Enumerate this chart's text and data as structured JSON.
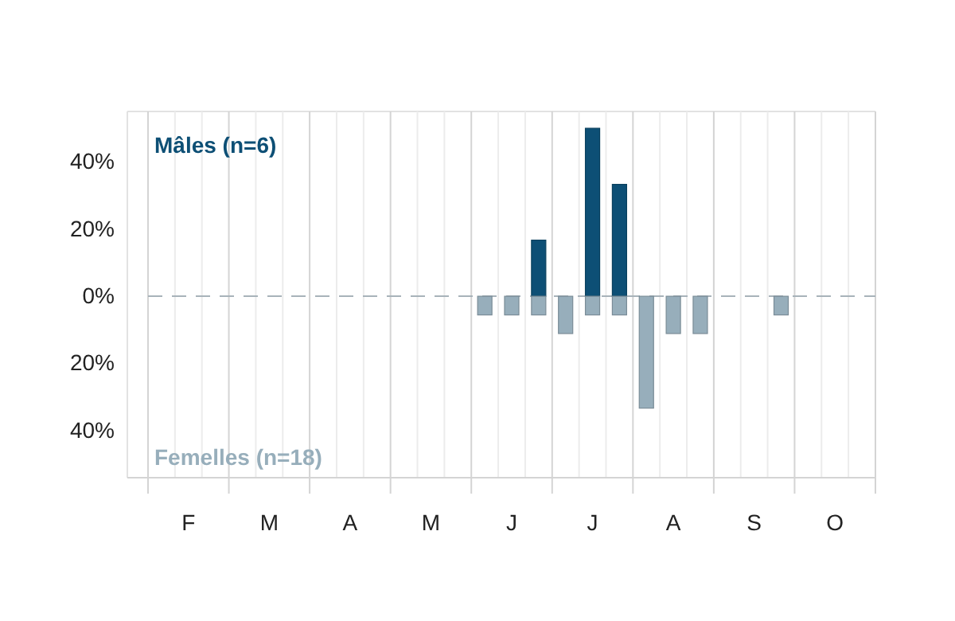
{
  "chart_data": {
    "type": "bar",
    "categories": [
      null,
      "F",
      null,
      null,
      "M",
      null,
      null,
      "A",
      null,
      null,
      "M",
      null,
      null,
      "J",
      null,
      null,
      "J",
      null,
      null,
      "A",
      null,
      null,
      "S",
      null,
      null,
      "O",
      null
    ],
    "series": [
      {
        "name": "Mâles (n=6)",
        "color": "#0d4f75",
        "values": [
          0,
          0,
          0,
          0,
          0,
          0,
          0,
          0,
          0,
          0,
          0,
          0,
          0,
          0,
          16.7,
          0,
          50,
          33.3,
          0,
          0,
          0,
          0,
          0,
          0,
          0,
          0,
          0
        ]
      },
      {
        "name": "Femelles (n=18)",
        "color": "#97aebb",
        "values": [
          0,
          0,
          0,
          0,
          0,
          0,
          0,
          0,
          0,
          0,
          0,
          0,
          -5.56,
          -5.56,
          -5.56,
          -11.1,
          -5.56,
          -5.56,
          -33.3,
          -11.1,
          -11.1,
          0,
          0,
          -5.56,
          0,
          0,
          0
        ]
      }
    ],
    "ylim": [
      -54,
      55
    ],
    "yticks": [
      {
        "value": -40,
        "label": "40%"
      },
      {
        "value": -20,
        "label": "20%"
      },
      {
        "value": 0,
        "label": "0%"
      },
      {
        "value": 20,
        "label": "20%"
      },
      {
        "value": 40,
        "label": "40%"
      }
    ],
    "grid": "x",
    "ref_lines": [
      {
        "axis": "y",
        "value": 0,
        "color": "#a8b3ba",
        "line_style": "dashed"
      }
    ]
  }
}
